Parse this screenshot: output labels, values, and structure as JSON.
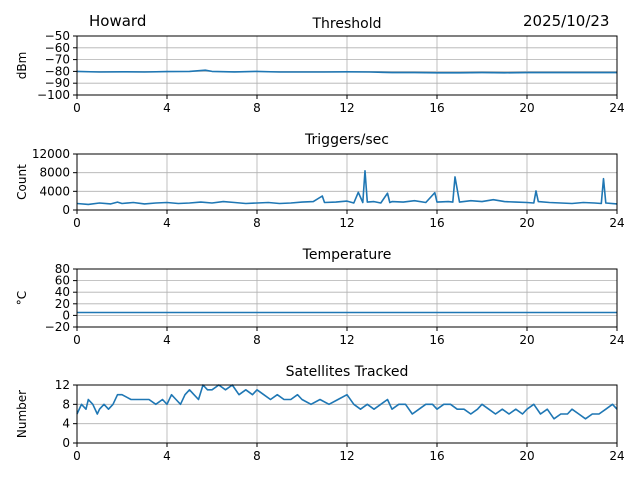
{
  "header": {
    "station": "Howard",
    "date": "2025/10/23"
  },
  "colors": {
    "line": "#1f77b4",
    "grid": "#b0b0b0",
    "axis": "#000000"
  },
  "chart_data": [
    {
      "type": "line",
      "title": "Threshold",
      "ylabel": "dBm",
      "xlim": [
        0,
        24
      ],
      "ylim": [
        -100,
        -50
      ],
      "xticks": [
        0,
        4,
        8,
        12,
        16,
        20,
        24
      ],
      "yticks": [
        -50,
        -60,
        -70,
        -80,
        -90,
        -100
      ],
      "ytick_labels": [
        "−50",
        "−60",
        "−70",
        "−80",
        "−90",
        "−100"
      ],
      "grid": true,
      "series": [
        {
          "x": [
            0,
            1,
            2,
            3,
            4,
            5,
            5.7,
            6,
            7,
            8,
            9,
            10,
            11,
            12,
            13,
            14,
            15,
            16,
            17,
            18,
            19,
            20,
            21,
            22,
            23,
            24
          ],
          "y": [
            -80,
            -80.5,
            -80.3,
            -80.5,
            -80.2,
            -80,
            -79,
            -80,
            -80.4,
            -80,
            -80.5,
            -80.5,
            -80.5,
            -80.3,
            -80.5,
            -81,
            -81,
            -81.2,
            -81.2,
            -81,
            -81.2,
            -81,
            -81,
            -81,
            -81,
            -81
          ]
        }
      ]
    },
    {
      "type": "line",
      "title": "Triggers/sec",
      "ylabel": "Count",
      "xlim": [
        0,
        24
      ],
      "ylim": [
        0,
        12000
      ],
      "xticks": [
        0,
        4,
        8,
        12,
        16,
        20,
        24
      ],
      "yticks": [
        0,
        4000,
        8000,
        12000
      ],
      "ytick_labels": [
        "0",
        "4000",
        "8000",
        "12000"
      ],
      "grid": true,
      "series": [
        {
          "x": [
            0,
            0.5,
            1,
            1.5,
            1.8,
            2,
            2.5,
            3,
            3.5,
            4,
            4.5,
            5,
            5.5,
            6,
            6.5,
            7,
            7.5,
            8,
            8.5,
            9,
            9.5,
            10,
            10.5,
            10.9,
            11,
            11.5,
            12,
            12.3,
            12.5,
            12.7,
            12.8,
            12.9,
            13.2,
            13.5,
            13.8,
            13.9,
            14,
            14.5,
            15,
            15.5,
            15.9,
            16,
            16.5,
            16.7,
            16.8,
            17,
            17.5,
            18,
            18.5,
            19,
            19.5,
            20,
            20.3,
            20.4,
            20.5,
            21,
            21.5,
            22,
            22.5,
            23,
            23.3,
            23.4,
            23.5,
            24
          ],
          "y": [
            1400,
            1200,
            1500,
            1300,
            1700,
            1400,
            1600,
            1300,
            1500,
            1600,
            1400,
            1500,
            1700,
            1500,
            1800,
            1600,
            1400,
            1500,
            1600,
            1400,
            1500,
            1700,
            1800,
            3000,
            1600,
            1700,
            1900,
            1500,
            3800,
            1600,
            8400,
            1700,
            1800,
            1500,
            3600,
            1600,
            1800,
            1700,
            2000,
            1600,
            3700,
            1700,
            1800,
            1700,
            7100,
            1700,
            2000,
            1800,
            2200,
            1800,
            1700,
            1600,
            1500,
            4100,
            1800,
            1600,
            1500,
            1400,
            1600,
            1500,
            1400,
            6700,
            1500,
            1300
          ]
        }
      ]
    },
    {
      "type": "line",
      "title": "Temperature",
      "ylabel": "°C",
      "xlim": [
        0,
        24
      ],
      "ylim": [
        -20,
        80
      ],
      "xticks": [
        0,
        4,
        8,
        12,
        16,
        20,
        24
      ],
      "yticks": [
        -20,
        0,
        20,
        40,
        60,
        80
      ],
      "ytick_labels": [
        "−20",
        "0",
        "20",
        "40",
        "60",
        "80"
      ],
      "grid": true,
      "series": [
        {
          "x": [
            0,
            24
          ],
          "y": [
            5,
            5
          ]
        }
      ]
    },
    {
      "type": "line",
      "title": "Satellites Tracked",
      "ylabel": "Number",
      "xlim": [
        0,
        24
      ],
      "ylim": [
        0,
        12
      ],
      "xticks": [
        0,
        4,
        8,
        12,
        16,
        20,
        24
      ],
      "yticks": [
        0,
        4,
        8,
        12
      ],
      "ytick_labels": [
        "0",
        "4",
        "8",
        "12"
      ],
      "grid": true,
      "series": [
        {
          "x": [
            0,
            0.2,
            0.4,
            0.5,
            0.7,
            0.9,
            1,
            1.2,
            1.4,
            1.6,
            1.8,
            2,
            2.4,
            2.8,
            3.2,
            3.5,
            3.8,
            4,
            4.2,
            4.4,
            4.6,
            4.8,
            5,
            5.2,
            5.4,
            5.6,
            5.8,
            6,
            6.3,
            6.6,
            6.9,
            7.2,
            7.5,
            7.8,
            8,
            8.3,
            8.6,
            8.9,
            9.2,
            9.5,
            9.8,
            10,
            10.4,
            10.8,
            11.2,
            11.6,
            12,
            12.3,
            12.6,
            12.9,
            13.2,
            13.5,
            13.8,
            14,
            14.3,
            14.6,
            14.9,
            15.2,
            15.5,
            15.8,
            16,
            16.3,
            16.6,
            16.9,
            17.2,
            17.5,
            17.8,
            18,
            18.3,
            18.6,
            18.9,
            19.2,
            19.5,
            19.8,
            20,
            20.3,
            20.6,
            20.9,
            21.2,
            21.5,
            21.8,
            22,
            22.3,
            22.6,
            22.9,
            23.2,
            23.5,
            23.8,
            24
          ],
          "y": [
            6,
            8,
            7,
            9,
            8,
            6,
            7,
            8,
            7,
            8,
            10,
            10,
            9,
            9,
            9,
            8,
            9,
            8,
            10,
            9,
            8,
            10,
            11,
            10,
            9,
            12,
            11,
            11,
            12,
            11,
            12,
            10,
            11,
            10,
            11,
            10,
            9,
            10,
            9,
            9,
            10,
            9,
            8,
            9,
            8,
            9,
            10,
            8,
            7,
            8,
            7,
            8,
            9,
            7,
            8,
            8,
            6,
            7,
            8,
            8,
            7,
            8,
            8,
            7,
            7,
            6,
            7,
            8,
            7,
            6,
            7,
            6,
            7,
            6,
            7,
            8,
            6,
            7,
            5,
            6,
            6,
            7,
            6,
            5,
            6,
            6,
            7,
            8,
            7
          ]
        }
      ]
    }
  ]
}
